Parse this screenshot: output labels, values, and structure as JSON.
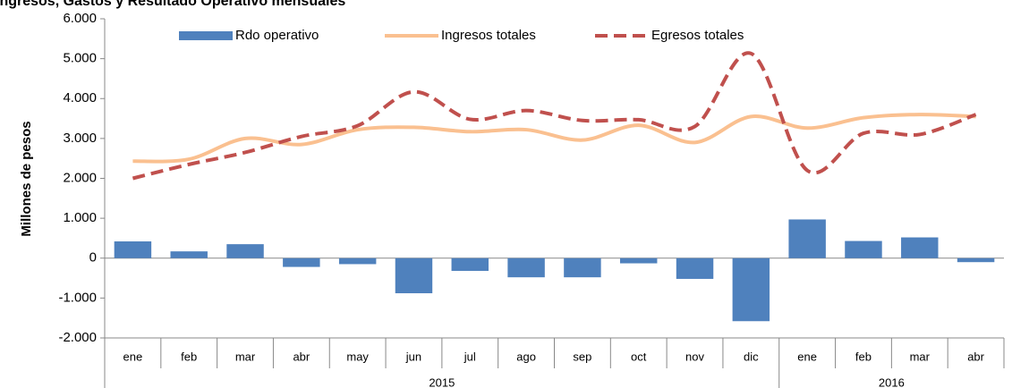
{
  "chart_data": {
    "type": "bar_line",
    "title": "Ingresos, Gastos y Resultado Operativo mensuales",
    "y_label": "Millones de pesos",
    "categories": [
      "ene",
      "feb",
      "mar",
      "abr",
      "may",
      "jun",
      "jul",
      "ago",
      "sep",
      "oct",
      "nov",
      "dic",
      "ene",
      "feb",
      "mar",
      "abr"
    ],
    "category_groups": [
      {
        "label": "2015",
        "count": 12
      },
      {
        "label": "2016",
        "count": 4
      }
    ],
    "series": [
      {
        "name": "Rdo operativo",
        "type": "bar",
        "color": "#4f81bd",
        "values": [
          420,
          170,
          350,
          -220,
          -150,
          -880,
          -320,
          -480,
          -480,
          -130,
          -520,
          -1580,
          970,
          430,
          520,
          -100
        ]
      },
      {
        "name": "Ingresos totales",
        "type": "line",
        "color": "#fac090",
        "dashed": false,
        "values": [
          2430,
          2480,
          3000,
          2850,
          3220,
          3280,
          3170,
          3220,
          2960,
          3330,
          2900,
          3550,
          3260,
          3520,
          3600,
          3550
        ]
      },
      {
        "name": "Egresos totales",
        "type": "line",
        "color": "#c0504d",
        "dashed": true,
        "values": [
          2000,
          2350,
          2650,
          3050,
          3320,
          4170,
          3480,
          3700,
          3450,
          3470,
          3300,
          5130,
          2200,
          3130,
          3100,
          3600
        ]
      }
    ],
    "ylim": [
      -2000,
      6000
    ],
    "yticks": [
      {
        "value": 6000,
        "label": "6.000"
      },
      {
        "value": 5000,
        "label": "5.000"
      },
      {
        "value": 4000,
        "label": "4.000"
      },
      {
        "value": 3000,
        "label": "3.000"
      },
      {
        "value": 2000,
        "label": "2.000"
      },
      {
        "value": 1000,
        "label": "1.000"
      },
      0,
      {
        "value": -1000,
        "label": "-1.000"
      },
      {
        "value": -2000,
        "label": "-2.000"
      }
    ],
    "legend": "top"
  }
}
